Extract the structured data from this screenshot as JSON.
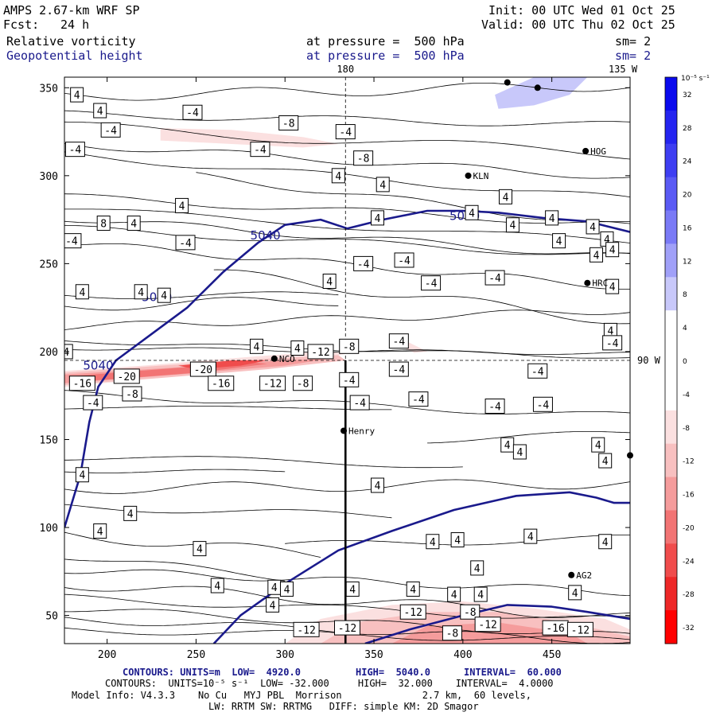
{
  "header": {
    "model": "AMPS 2.67-km WRF SP",
    "fcst_label": "Fcst:",
    "fcst_value": "24 h",
    "init": "Init: 00 UTC Wed 01 Oct 25",
    "valid": "Valid: 00 UTC Thu 02 Oct 25",
    "field1": "Relative vorticity",
    "field2": "Geopotential height",
    "pressure1": "at pressure =  500 hPa",
    "pressure2": "at pressure =  500 hPa",
    "sm1": "sm= 2",
    "sm2": "sm= 2"
  },
  "colors": {
    "height_contour": "#1a1a8c",
    "negative_max": "#ff0000",
    "positive_max": "#0000ff"
  },
  "chart_data": {
    "type": "contour",
    "xlim": [
      176,
      494
    ],
    "ylim": [
      34,
      356
    ],
    "xticks": [
      200,
      250,
      300,
      350,
      400,
      450
    ],
    "yticks": [
      50,
      100,
      150,
      200,
      250,
      300,
      350
    ],
    "meridian_labels": {
      "lon_180": "180",
      "lon_135w": "135 W",
      "lon_90w": "90 W"
    },
    "meridian_x": 334,
    "parallel_y": 195,
    "colorbar": {
      "unit": "10⁻⁵ s⁻¹",
      "levels": [
        32,
        28,
        24,
        20,
        16,
        12,
        8,
        4,
        0,
        -4,
        -8,
        -12,
        -16,
        -20,
        -24,
        -28,
        -32
      ],
      "colors": [
        "#0a0aee",
        "#2424f0",
        "#3e3ef2",
        "#5a5af4",
        "#7a7af6",
        "#a0a0f8",
        "#c8c8fa",
        "#ffffff",
        "#ffffff",
        "#ffffff",
        "#fbe0e0",
        "#f8c0c0",
        "#f59c9c",
        "#f27474",
        "#f04c4c",
        "#ee2828",
        "#ff0000"
      ]
    },
    "height_contours": [
      {
        "label": "5040",
        "points": [
          [
            176,
            100
          ],
          [
            185,
            130
          ],
          [
            190,
            160
          ],
          [
            195,
            180
          ],
          [
            205,
            195
          ],
          [
            225,
            210
          ],
          [
            245,
            225
          ],
          [
            265,
            245
          ],
          [
            285,
            262
          ],
          [
            300,
            272
          ],
          [
            320,
            275
          ],
          [
            335,
            270
          ],
          [
            355,
            275
          ],
          [
            380,
            280
          ],
          [
            400,
            280
          ],
          [
            420,
            279
          ],
          [
            445,
            276
          ],
          [
            470,
            274
          ],
          [
            494,
            268
          ]
        ]
      },
      {
        "label": "",
        "points": [
          [
            260,
            34
          ],
          [
            275,
            50
          ],
          [
            300,
            68
          ],
          [
            330,
            87
          ],
          [
            360,
            98
          ],
          [
            395,
            110
          ],
          [
            430,
            118
          ],
          [
            460,
            120
          ],
          [
            475,
            117
          ],
          [
            485,
            114
          ],
          [
            494,
            114
          ]
        ]
      },
      {
        "label": "",
        "points": [
          [
            345,
            34
          ],
          [
            370,
            42
          ],
          [
            400,
            50
          ],
          [
            425,
            56
          ],
          [
            450,
            55
          ],
          [
            470,
            52
          ],
          [
            494,
            48
          ]
        ]
      }
    ],
    "vorticity_labels": [
      {
        "x": 183,
        "y": 346,
        "v": "4"
      },
      {
        "x": 196,
        "y": 337,
        "v": "4"
      },
      {
        "x": 202,
        "y": 326,
        "v": "-4"
      },
      {
        "x": 248,
        "y": 336,
        "v": "-4"
      },
      {
        "x": 286,
        "y": 315,
        "v": "-4"
      },
      {
        "x": 302,
        "y": 330,
        "v": "-8"
      },
      {
        "x": 182,
        "y": 315,
        "v": "-4"
      },
      {
        "x": 334,
        "y": 325,
        "v": "-4"
      },
      {
        "x": 344,
        "y": 310,
        "v": "-8"
      },
      {
        "x": 330,
        "y": 300,
        "v": "4"
      },
      {
        "x": 355,
        "y": 295,
        "v": "4"
      },
      {
        "x": 352,
        "y": 276,
        "v": "4"
      },
      {
        "x": 198,
        "y": 273,
        "v": "8"
      },
      {
        "x": 215,
        "y": 273,
        "v": "4"
      },
      {
        "x": 242,
        "y": 283,
        "v": "4"
      },
      {
        "x": 180,
        "y": 263,
        "v": "-4"
      },
      {
        "x": 244,
        "y": 262,
        "v": "-4"
      },
      {
        "x": 405,
        "y": 279,
        "v": "4"
      },
      {
        "x": 428,
        "y": 272,
        "v": "4"
      },
      {
        "x": 450,
        "y": 276,
        "v": "4"
      },
      {
        "x": 473,
        "y": 271,
        "v": "4"
      },
      {
        "x": 424,
        "y": 288,
        "v": "4"
      },
      {
        "x": 454,
        "y": 263,
        "v": "4"
      },
      {
        "x": 481,
        "y": 264,
        "v": "4"
      },
      {
        "x": 484,
        "y": 258,
        "v": "4"
      },
      {
        "x": 344,
        "y": 250,
        "v": "-4"
      },
      {
        "x": 367,
        "y": 252,
        "v": "-4"
      },
      {
        "x": 325,
        "y": 240,
        "v": "4"
      },
      {
        "x": 382,
        "y": 239,
        "v": "-4"
      },
      {
        "x": 418,
        "y": 242,
        "v": "-4"
      },
      {
        "x": 475,
        "y": 255,
        "v": "4"
      },
      {
        "x": 484,
        "y": 237,
        "v": "4"
      },
      {
        "x": 483,
        "y": 212,
        "v": "4"
      },
      {
        "x": 484,
        "y": 205,
        "v": "-4"
      },
      {
        "x": 186,
        "y": 234,
        "v": "4"
      },
      {
        "x": 219,
        "y": 234,
        "v": "4"
      },
      {
        "x": 232,
        "y": 232,
        "v": "4"
      },
      {
        "x": 177,
        "y": 200,
        "v": "4"
      },
      {
        "x": 284,
        "y": 203,
        "v": "4"
      },
      {
        "x": 307,
        "y": 202,
        "v": "4"
      },
      {
        "x": 336,
        "y": 203,
        "v": "-8"
      },
      {
        "x": 320,
        "y": 200,
        "v": "-12"
      },
      {
        "x": 364,
        "y": 206,
        "v": "-4"
      },
      {
        "x": 364,
        "y": 190,
        "v": "-4"
      },
      {
        "x": 186,
        "y": 182,
        "v": "-16"
      },
      {
        "x": 211,
        "y": 186,
        "v": "-20"
      },
      {
        "x": 254,
        "y": 190,
        "v": "-20"
      },
      {
        "x": 264,
        "y": 182,
        "v": "-16"
      },
      {
        "x": 293,
        "y": 182,
        "v": "-12"
      },
      {
        "x": 310,
        "y": 182,
        "v": "-8"
      },
      {
        "x": 336,
        "y": 184,
        "v": "-4"
      },
      {
        "x": 214,
        "y": 176,
        "v": "-8"
      },
      {
        "x": 192,
        "y": 171,
        "v": "-4"
      },
      {
        "x": 342,
        "y": 171,
        "v": "-4"
      },
      {
        "x": 375,
        "y": 173,
        "v": "-4"
      },
      {
        "x": 418,
        "y": 169,
        "v": "-4"
      },
      {
        "x": 442,
        "y": 189,
        "v": "-4"
      },
      {
        "x": 445,
        "y": 170,
        "v": "-4"
      },
      {
        "x": 425,
        "y": 147,
        "v": "4"
      },
      {
        "x": 432,
        "y": 143,
        "v": "4"
      },
      {
        "x": 476,
        "y": 147,
        "v": "4"
      },
      {
        "x": 480,
        "y": 138,
        "v": "4"
      },
      {
        "x": 186,
        "y": 130,
        "v": "4"
      },
      {
        "x": 352,
        "y": 124,
        "v": "4"
      },
      {
        "x": 213,
        "y": 108,
        "v": "4"
      },
      {
        "x": 196,
        "y": 98,
        "v": "4"
      },
      {
        "x": 438,
        "y": 95,
        "v": "4"
      },
      {
        "x": 480,
        "y": 92,
        "v": "4"
      },
      {
        "x": 252,
        "y": 88,
        "v": "4"
      },
      {
        "x": 383,
        "y": 92,
        "v": "4"
      },
      {
        "x": 397,
        "y": 93,
        "v": "4"
      },
      {
        "x": 408,
        "y": 77,
        "v": "4"
      },
      {
        "x": 262,
        "y": 67,
        "v": "4"
      },
      {
        "x": 294,
        "y": 66,
        "v": "4"
      },
      {
        "x": 301,
        "y": 65,
        "v": "4"
      },
      {
        "x": 338,
        "y": 65,
        "v": "4"
      },
      {
        "x": 372,
        "y": 65,
        "v": "4"
      },
      {
        "x": 395,
        "y": 62,
        "v": "4"
      },
      {
        "x": 410,
        "y": 62,
        "v": "4"
      },
      {
        "x": 463,
        "y": 63,
        "v": "4"
      },
      {
        "x": 293,
        "y": 56,
        "v": "4"
      },
      {
        "x": 372,
        "y": 52,
        "v": "-12"
      },
      {
        "x": 404,
        "y": 52,
        "v": "-8"
      },
      {
        "x": 414,
        "y": 45,
        "v": "-12"
      },
      {
        "x": 452,
        "y": 43,
        "v": "-16"
      },
      {
        "x": 466,
        "y": 42,
        "v": "-12"
      },
      {
        "x": 312,
        "y": 42,
        "v": "-12"
      },
      {
        "x": 335,
        "y": 43,
        "v": "-12"
      },
      {
        "x": 394,
        "y": 40,
        "v": "-8"
      }
    ],
    "stations": [
      {
        "x": 425,
        "y": 353,
        "name": ""
      },
      {
        "x": 442,
        "y": 350,
        "name": ""
      },
      {
        "x": 469,
        "y": 314,
        "name": "HOG"
      },
      {
        "x": 403,
        "y": 300,
        "name": "KLN"
      },
      {
        "x": 470,
        "y": 239,
        "name": "HRC"
      },
      {
        "x": 294,
        "y": 196,
        "name": "NCO"
      },
      {
        "x": 333,
        "y": 155,
        "name": "Henry"
      },
      {
        "x": 494,
        "y": 141,
        "name": ""
      },
      {
        "x": 461,
        "y": 73,
        "name": "AG2"
      }
    ],
    "henry_line_x": 334
  },
  "footer": {
    "line1a": "CONTOURS: UNITS=m  LOW=  4920.0",
    "line1b": "HIGH=  5040.0",
    "line1c": "INTERVAL=  60.000",
    "line2": "CONTOURS:  UNITS=10⁻⁵ s⁻¹  LOW= -32.000     HIGH=  32.000    INTERVAL=  4.0000",
    "line3": "Model Info: V4.3.3    No Cu   MYJ PBL  Morrison              2.7 km,  60 levels,",
    "line4": "LW: RRTM SW: RRTMG   DIFF: simple KM: 2D Smagor"
  }
}
